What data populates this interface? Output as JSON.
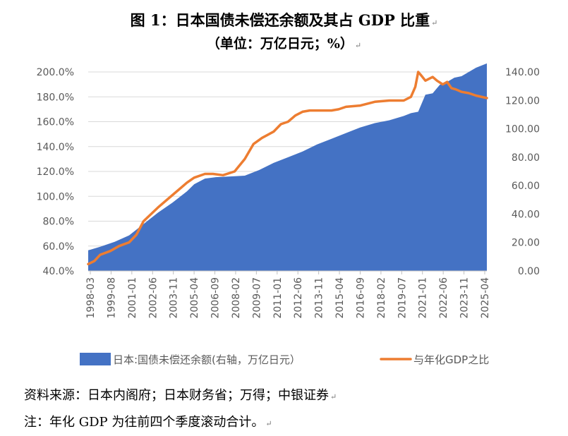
{
  "title": {
    "line1": "图 1：日本国债未偿还余额及其占 GDP 比重",
    "line2": "（单位：万亿日元；%）"
  },
  "para_mark": "↵",
  "notes": {
    "source": "资料来源：日本内阁府；日本财务省；万得；中银证券",
    "note": "注：年化 GDP 为往前四个季度滚动合计。"
  },
  "chart_data": {
    "type": "area+line",
    "left_axis": {
      "min": 40,
      "max": 200,
      "ticks": [
        "40.0%",
        "60.0%",
        "80.0%",
        "100.0%",
        "120.0%",
        "140.0%",
        "160.0%",
        "180.0%",
        "200.0%"
      ]
    },
    "right_axis": {
      "min": 0,
      "max": 140,
      "ticks": [
        "0.00",
        "20.00",
        "40.00",
        "60.00",
        "80.00",
        "100.00",
        "120.00",
        "140.00"
      ]
    },
    "x_range": [
      1998.17,
      2025.75
    ],
    "x_tick_labels": [
      "1998-03",
      "1999-08",
      "2001-01",
      "2002-06",
      "2003-11",
      "2005-04",
      "2006-09",
      "2008-02",
      "2009-07",
      "2011-01",
      "2012-06",
      "2013-11",
      "2015-04",
      "2016-09",
      "2018-02",
      "2019-07",
      "2021-01",
      "2022-06",
      "2023-11",
      "2025-04"
    ],
    "colors": {
      "area": "#4472C4",
      "line": "#ED7D31"
    },
    "legend": {
      "position": "bottom",
      "area_label": "日本:国债未偿还余额(右轴，万亿日元）",
      "line_label": "与年化GDP之比"
    },
    "series_area": {
      "name": "日本:国债未偿还余额(右轴，万亿日元）",
      "axis": "right",
      "x": [
        1998.17,
        1999.0,
        2000.0,
        2001.0,
        2002.0,
        2003.0,
        2004.0,
        2005.0,
        2005.5,
        2006.25,
        2007.0,
        2008.0,
        2009.0,
        2010.0,
        2011.0,
        2012.0,
        2013.0,
        2014.0,
        2015.0,
        2016.0,
        2017.0,
        2018.0,
        2019.0,
        2020.0,
        2020.5,
        2021.0,
        2021.5,
        2022.0,
        2022.5,
        2023.0,
        2023.5,
        2024.0,
        2025.0,
        2025.75
      ],
      "values": [
        14.5,
        17,
        20.5,
        25,
        33,
        41,
        48,
        56,
        61,
        65,
        66,
        66.5,
        67,
        71,
        76,
        80,
        84,
        89,
        93,
        97,
        101,
        104,
        106,
        109,
        111,
        112,
        124,
        125,
        131,
        133,
        136,
        137,
        143,
        146
      ]
    },
    "series_line": {
      "name": "与年化GDP之比",
      "axis": "left",
      "x": [
        1998.17,
        1998.6,
        1999.0,
        1999.7,
        2000.3,
        2001.0,
        2001.5,
        2002.0,
        2003.0,
        2004.0,
        2005.0,
        2005.5,
        2006.25,
        2006.8,
        2007.5,
        2008.3,
        2009.0,
        2009.6,
        2010.2,
        2011.0,
        2011.5,
        2012.0,
        2012.5,
        2013.0,
        2013.5,
        2014.0,
        2015.0,
        2015.5,
        2016.0,
        2017.0,
        2018.0,
        2019.0,
        2019.5,
        2020.0,
        2020.5,
        2020.8,
        2021.0,
        2021.15,
        2021.5,
        2022.0,
        2022.3,
        2022.7,
        2023.0,
        2023.3,
        2023.6,
        2024.0,
        2024.5,
        2025.0,
        2025.75
      ],
      "values": [
        45.5,
        48,
        53,
        56,
        60,
        63,
        69,
        80,
        91,
        101,
        111,
        115,
        118,
        118,
        117,
        120,
        130,
        142,
        147,
        152,
        158,
        160,
        165,
        168,
        169,
        169,
        169,
        170,
        172,
        173,
        176,
        177,
        177,
        177,
        180,
        188,
        200,
        198,
        193,
        196,
        193,
        190,
        192,
        187,
        186,
        184,
        183,
        181,
        179
      ]
    }
  }
}
